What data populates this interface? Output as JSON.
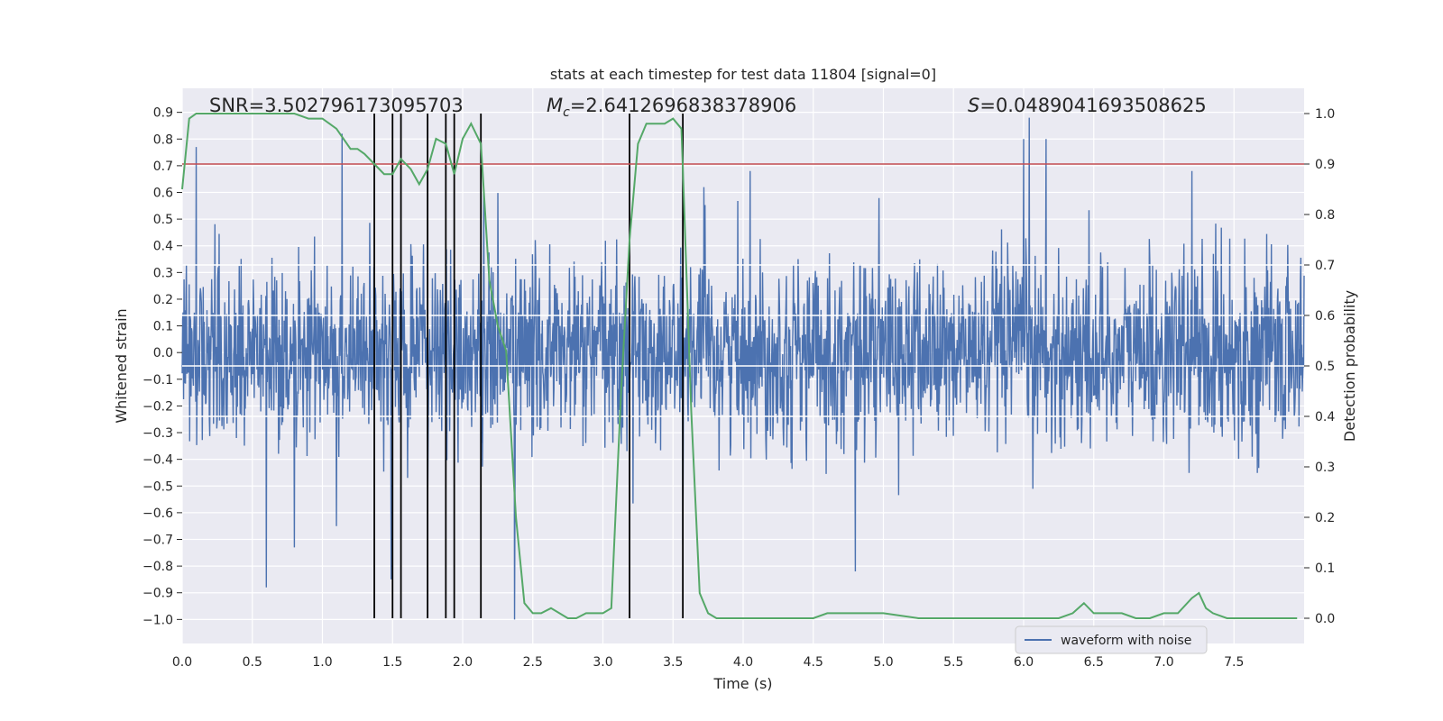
{
  "chart_data": {
    "type": "line",
    "title": "stats at each timestep for test data 11804 [signal=0]",
    "xlabel": "Time (s)",
    "ylabel": "Whitened strain",
    "ylabel_right": "Detection probability",
    "xlim": [
      0.0,
      8.0
    ],
    "ylim_left": [
      -1.09,
      0.99
    ],
    "ylim_right": [
      -0.05,
      1.05
    ],
    "x_ticks": [
      "0.0",
      "0.5",
      "1.0",
      "1.5",
      "2.0",
      "2.5",
      "3.0",
      "3.5",
      "4.0",
      "4.5",
      "5.0",
      "5.5",
      "6.0",
      "6.5",
      "7.0",
      "7.5"
    ],
    "y_ticks_left": [
      "0.9",
      "0.8",
      "0.7",
      "0.6",
      "0.5",
      "0.4",
      "0.3",
      "0.2",
      "0.1",
      "0.0",
      "−0.1",
      "−0.2",
      "−0.3",
      "−0.4",
      "−0.5",
      "−0.6",
      "−0.7",
      "−0.8",
      "−0.9",
      "−1.0"
    ],
    "y_ticks_right": [
      "1.0",
      "0.9",
      "0.8",
      "0.7",
      "0.6",
      "0.5",
      "0.4",
      "0.3",
      "0.2",
      "0.1",
      "0.0"
    ],
    "threshold": 0.9,
    "detection_lines_x": [
      1.37,
      1.5,
      1.56,
      1.75,
      1.88,
      1.94,
      2.13,
      3.19,
      3.57
    ],
    "annotations": {
      "snr": "SNR=3.502796173095703",
      "mc_symbol": "M",
      "mc_subscript": "c",
      "mc_value": "=2.6412696838378906",
      "s_symbol": "S",
      "s_value": "=0.0489041693508625"
    },
    "legend": [
      "waveform with noise"
    ],
    "series": [
      {
        "name": "waveform with noise",
        "type": "noise",
        "sigma": 0.17,
        "spikes": [
          [
            0.1,
            0.77
          ],
          [
            0.6,
            -0.88
          ],
          [
            0.8,
            -0.73
          ],
          [
            1.1,
            -0.65
          ],
          [
            1.14,
            0.82
          ],
          [
            1.49,
            -0.85
          ],
          [
            2.15,
            0.61
          ],
          [
            2.37,
            -1.0
          ],
          [
            3.57,
            -0.72
          ],
          [
            3.72,
            0.62
          ],
          [
            4.05,
            0.68
          ],
          [
            4.8,
            -0.82
          ],
          [
            6.0,
            0.8
          ],
          [
            6.04,
            0.88
          ],
          [
            6.16,
            0.8
          ],
          [
            7.2,
            0.68
          ]
        ]
      },
      {
        "name": "Detection probability",
        "x": [
          0.0,
          0.05,
          0.1,
          0.2,
          0.3,
          0.4,
          0.5,
          0.6,
          0.7,
          0.8,
          0.9,
          1.0,
          1.05,
          1.1,
          1.15,
          1.2,
          1.25,
          1.3,
          1.37,
          1.44,
          1.5,
          1.56,
          1.63,
          1.69,
          1.75,
          1.81,
          1.88,
          1.94,
          2.0,
          2.06,
          2.13,
          2.19,
          2.25,
          2.31,
          2.38,
          2.44,
          2.5,
          2.56,
          2.63,
          2.69,
          2.75,
          2.81,
          2.88,
          2.94,
          3.0,
          3.06,
          3.13,
          3.19,
          3.25,
          3.31,
          3.38,
          3.44,
          3.5,
          3.56,
          3.63,
          3.69,
          3.75,
          3.81,
          3.88,
          4.0,
          4.25,
          4.5,
          4.6,
          4.75,
          5.0,
          5.25,
          5.5,
          5.75,
          6.0,
          6.25,
          6.35,
          6.43,
          6.5,
          6.6,
          6.7,
          6.8,
          6.9,
          7.0,
          7.1,
          7.2,
          7.25,
          7.3,
          7.35,
          7.45,
          7.6,
          7.8,
          7.95
        ],
        "y": [
          0.85,
          0.99,
          1.0,
          1.0,
          1.0,
          1.0,
          1.0,
          1.0,
          1.0,
          1.0,
          0.99,
          0.99,
          0.98,
          0.97,
          0.95,
          0.93,
          0.93,
          0.92,
          0.9,
          0.88,
          0.88,
          0.91,
          0.89,
          0.86,
          0.89,
          0.95,
          0.94,
          0.88,
          0.95,
          0.98,
          0.94,
          0.67,
          0.58,
          0.53,
          0.2,
          0.03,
          0.01,
          0.01,
          0.02,
          0.01,
          0.0,
          0.0,
          0.01,
          0.01,
          0.01,
          0.02,
          0.45,
          0.75,
          0.94,
          0.98,
          0.98,
          0.98,
          0.99,
          0.97,
          0.41,
          0.05,
          0.01,
          0.0,
          0.0,
          0.0,
          0.0,
          0.0,
          0.01,
          0.01,
          0.01,
          0.0,
          0.0,
          0.0,
          0.0,
          0.0,
          0.01,
          0.03,
          0.01,
          0.01,
          0.01,
          0.0,
          0.0,
          0.01,
          0.01,
          0.04,
          0.05,
          0.02,
          0.01,
          0.0,
          0.0,
          0.0,
          0.0
        ]
      }
    ]
  }
}
